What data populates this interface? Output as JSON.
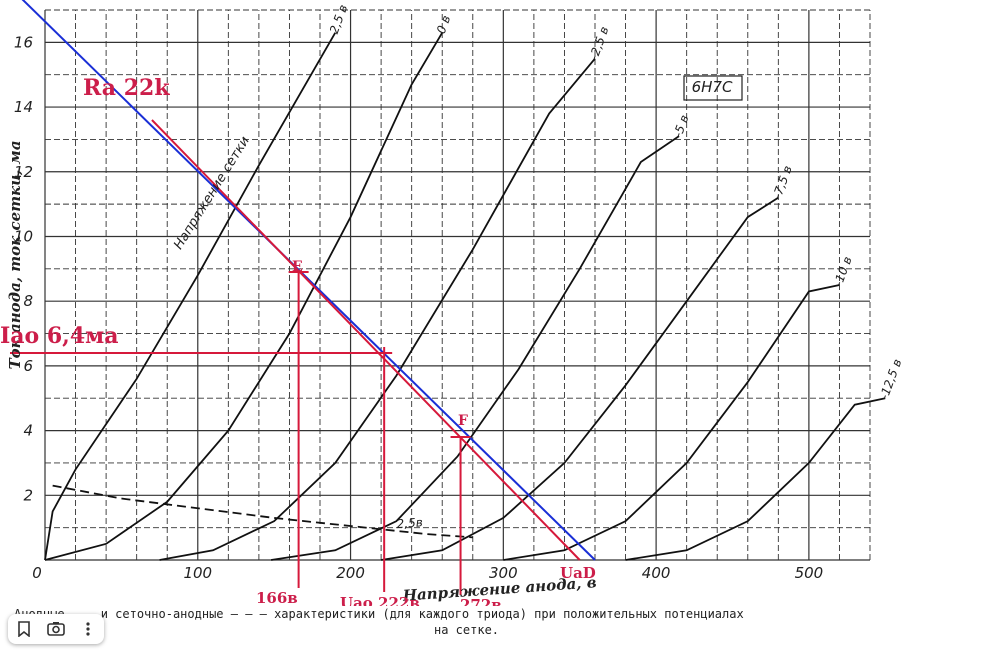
{
  "chart_data": {
    "type": "line",
    "title": "6Н7С",
    "xlabel": "Напряжение анода, в",
    "ylabel": "Ток анода, ток сетки, ма",
    "xlim": [
      0,
      540
    ],
    "ylim": [
      0,
      17
    ],
    "x_ticks": [
      {
        "v": 0,
        "label": "0"
      },
      {
        "v": 100,
        "label": "100"
      },
      {
        "v": 200,
        "label": "200"
      },
      {
        "v": 300,
        "label": "300"
      },
      {
        "v": 400,
        "label": "400"
      },
      {
        "v": 500,
        "label": "500"
      }
    ],
    "y_ticks": [
      {
        "v": 0,
        "label": "0"
      },
      {
        "v": 2,
        "label": "2"
      },
      {
        "v": 4,
        "label": "4"
      },
      {
        "v": 6,
        "label": "6"
      },
      {
        "v": 8,
        "label": "8"
      },
      {
        "v": 10,
        "label": "10"
      },
      {
        "v": 12,
        "label": "12"
      },
      {
        "v": 14,
        "label": "14"
      },
      {
        "v": 16,
        "label": "16"
      }
    ],
    "grid": true,
    "curve_group_label": "Напряжение сетки",
    "series": [
      {
        "name": "2,5 в",
        "x": [
          0,
          5,
          20,
          60,
          100,
          140,
          190
        ],
        "y": [
          0,
          1.5,
          2.8,
          5.6,
          8.8,
          12.2,
          16.3
        ]
      },
      {
        "name": "0 в",
        "x": [
          0,
          40,
          80,
          120,
          160,
          200,
          240,
          260
        ],
        "y": [
          0,
          0.5,
          1.8,
          4.0,
          7.0,
          10.6,
          14.7,
          16.3
        ]
      },
      {
        "name": "-2,5 в",
        "x": [
          75,
          110,
          150,
          190,
          230,
          280,
          330,
          360
        ],
        "y": [
          0,
          0.3,
          1.2,
          3.0,
          5.7,
          9.6,
          13.8,
          15.5
        ]
      },
      {
        "name": "-5 в",
        "x": [
          148,
          190,
          230,
          270,
          310,
          350,
          390,
          415
        ],
        "y": [
          0,
          0.3,
          1.2,
          3.2,
          5.9,
          9.0,
          12.3,
          13.1
        ]
      },
      {
        "name": "-7,5 в",
        "x": [
          220,
          260,
          300,
          340,
          380,
          420,
          460,
          480
        ],
        "y": [
          0,
          0.3,
          1.3,
          3.0,
          5.4,
          8.0,
          10.6,
          11.2
        ]
      },
      {
        "name": "-10 в",
        "x": [
          300,
          340,
          380,
          420,
          460,
          500,
          520
        ],
        "y": [
          0,
          0.3,
          1.2,
          3.0,
          5.5,
          8.3,
          8.5
        ]
      },
      {
        "name": "-12,5 в",
        "x": [
          380,
          420,
          460,
          500,
          530,
          550
        ],
        "y": [
          0,
          0.3,
          1.2,
          3.0,
          4.8,
          5.0
        ]
      },
      {
        "name": "2,5в",
        "dashed": true,
        "x": [
          5,
          50,
          100,
          150,
          200,
          250,
          280
        ],
        "y": [
          2.3,
          1.9,
          1.6,
          1.3,
          1.05,
          0.8,
          0.7
        ]
      }
    ],
    "load_lines": [
      {
        "label": "Ra 22k",
        "color": "#1a2fd6",
        "x": [
          -25,
          360
        ],
        "y": [
          17.8,
          0
        ]
      },
      {
        "label": "",
        "color": "#d6193b",
        "x": [
          70,
          350
        ],
        "y": [
          13.6,
          0
        ]
      }
    ],
    "operating_point": {
      "x": 222,
      "y": 6.4
    },
    "annotations": {
      "ra": "Ra 22k",
      "iao": "Iao 6,4ма",
      "point_e": "E",
      "point_f": "F",
      "u_e": "166в",
      "u_ao": "Uao 222в",
      "u_f": "272в",
      "u_ad": "UaD",
      "e_x": 166,
      "e_y": 8.9,
      "f_x": 272,
      "f_y": 3.8
    }
  },
  "caption": {
    "line1": "Анодные ——— и сеточно-анодные — — — характеристики (для каждого триода) при положительных потенциалах",
    "line2": "на сетке."
  },
  "toolbar": {
    "bookmark_icon": "bookmark-icon",
    "lens_icon": "lens-icon",
    "more_icon": "more-icon"
  }
}
